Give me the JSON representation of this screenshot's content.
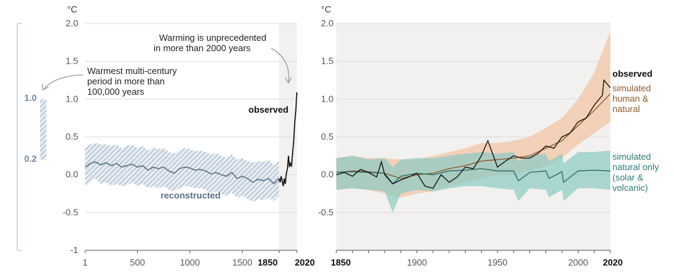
{
  "chart_data": [
    {
      "type": "line",
      "unit": "°C",
      "ylim": [
        -1,
        2
      ],
      "yticks": [
        "2.0",
        "1.5",
        "1.0",
        "0.5",
        "0.0",
        "-0.5",
        "-1"
      ],
      "xlim": [
        1,
        2020
      ],
      "xticks": [
        "1",
        "500",
        "1000",
        "1500",
        "1850",
        "2020"
      ],
      "shaded_period": [
        1850,
        2020
      ],
      "annotations": {
        "unprecedented": [
          "Warming is unprecedented",
          "in more than 2000 years"
        ],
        "warmest": [
          "Warmest multi-century",
          "period in more than",
          "100,000 years"
        ]
      },
      "side_range": {
        "labels": [
          "1.0",
          "0.2"
        ],
        "low": 0.2,
        "high": 1.0
      },
      "labels": {
        "observed": "observed",
        "reconstructed": "reconstructed"
      },
      "series": [
        {
          "name": "reconstructed",
          "x": [
            1,
            50,
            100,
            150,
            200,
            250,
            300,
            350,
            400,
            450,
            500,
            550,
            600,
            650,
            700,
            750,
            800,
            850,
            900,
            950,
            1000,
            1050,
            1100,
            1150,
            1200,
            1250,
            1300,
            1350,
            1400,
            1450,
            1500,
            1550,
            1600,
            1650,
            1700,
            1750,
            1800,
            1850
          ],
          "y": [
            0.1,
            0.15,
            0.17,
            0.13,
            0.16,
            0.12,
            0.15,
            0.1,
            0.12,
            0.14,
            0.1,
            0.12,
            0.06,
            0.1,
            0.08,
            0.1,
            0.05,
            0.02,
            0.08,
            0.1,
            0.09,
            0.06,
            0.07,
            0.05,
            0.01,
            0.03,
            0.0,
            -0.02,
            0.03,
            -0.05,
            -0.02,
            -0.05,
            -0.1,
            -0.06,
            -0.08,
            -0.05,
            -0.12,
            -0.05
          ],
          "lower": [
            -0.15,
            -0.1,
            -0.05,
            -0.12,
            -0.1,
            -0.15,
            -0.12,
            -0.15,
            -0.14,
            -0.1,
            -0.15,
            -0.12,
            -0.18,
            -0.15,
            -0.18,
            -0.15,
            -0.2,
            -0.22,
            -0.18,
            -0.15,
            -0.16,
            -0.18,
            -0.18,
            -0.2,
            -0.24,
            -0.22,
            -0.26,
            -0.28,
            -0.24,
            -0.3,
            -0.28,
            -0.32,
            -0.36,
            -0.32,
            -0.34,
            -0.3,
            -0.35,
            -0.28
          ],
          "upper": [
            0.35,
            0.4,
            0.42,
            0.4,
            0.4,
            0.38,
            0.4,
            0.35,
            0.38,
            0.4,
            0.35,
            0.38,
            0.32,
            0.36,
            0.34,
            0.35,
            0.3,
            0.28,
            0.32,
            0.35,
            0.34,
            0.31,
            0.32,
            0.3,
            0.27,
            0.28,
            0.25,
            0.22,
            0.27,
            0.2,
            0.22,
            0.18,
            0.16,
            0.18,
            0.17,
            0.2,
            0.12,
            0.18
          ]
        },
        {
          "name": "observed",
          "x": [
            1850,
            1860,
            1870,
            1880,
            1890,
            1900,
            1910,
            1920,
            1930,
            1940,
            1950,
            1960,
            1970,
            1980,
            1990,
            2000,
            2010,
            2020
          ],
          "y": [
            -0.05,
            -0.1,
            -0.02,
            -0.08,
            -0.15,
            -0.05,
            -0.12,
            0.02,
            0.08,
            0.25,
            0.1,
            0.15,
            0.12,
            0.3,
            0.45,
            0.7,
            0.85,
            1.09
          ]
        }
      ]
    },
    {
      "type": "line",
      "unit": "°C",
      "ylim": [
        -1,
        2
      ],
      "yticks": [
        "2.0",
        "1.5",
        "1.0",
        "0.5",
        "0.0",
        "-0.5"
      ],
      "xlim": [
        1850,
        2020
      ],
      "xticks": [
        "1850",
        "1900",
        "1950",
        "2000",
        "2020"
      ],
      "labels": {
        "observed": "observed",
        "human": [
          "simulated",
          "human &",
          "natural"
        ],
        "natural": [
          "simulated",
          "natural only",
          "(solar &",
          "volcanic)"
        ]
      },
      "colors": {
        "observed": "#111111",
        "human": "#8b5a2b",
        "human_band": "#f2c5a5",
        "natural": "#2d6b66",
        "natural_band": "#8ccbc3"
      },
      "series": [
        {
          "name": "observed",
          "x": [
            1850,
            1855,
            1860,
            1865,
            1870,
            1875,
            1878,
            1880,
            1885,
            1890,
            1895,
            1900,
            1905,
            1910,
            1915,
            1920,
            1925,
            1930,
            1935,
            1940,
            1944,
            1950,
            1955,
            1960,
            1965,
            1970,
            1975,
            1980,
            1985,
            1990,
            1995,
            2000,
            2005,
            2010,
            2015,
            2016,
            2020
          ],
          "y": [
            0.0,
            0.03,
            -0.02,
            0.07,
            0.03,
            -0.03,
            0.17,
            0.0,
            -0.12,
            -0.07,
            -0.03,
            0.02,
            -0.15,
            -0.18,
            0.0,
            -0.1,
            -0.03,
            0.1,
            0.08,
            0.25,
            0.45,
            0.1,
            0.18,
            0.25,
            0.22,
            0.22,
            0.28,
            0.38,
            0.35,
            0.5,
            0.55,
            0.7,
            0.75,
            0.92,
            1.05,
            1.25,
            1.15
          ]
        },
        {
          "name": "simulated human & natural",
          "x": [
            1850,
            1860,
            1870,
            1880,
            1890,
            1900,
            1910,
            1920,
            1930,
            1940,
            1950,
            1960,
            1970,
            1980,
            1990,
            2000,
            2010,
            2020
          ],
          "y": [
            0.03,
            0.05,
            0.04,
            0.02,
            -0.05,
            0.0,
            0.02,
            0.08,
            0.12,
            0.18,
            0.2,
            0.22,
            0.25,
            0.35,
            0.45,
            0.65,
            0.85,
            1.07
          ],
          "lower": [
            -0.2,
            -0.18,
            -0.2,
            -0.25,
            -0.3,
            -0.25,
            -0.22,
            -0.15,
            -0.1,
            -0.05,
            0.0,
            0.0,
            0.05,
            0.12,
            0.22,
            0.4,
            0.55,
            0.7
          ],
          "upper": [
            0.22,
            0.25,
            0.22,
            0.22,
            0.2,
            0.2,
            0.25,
            0.3,
            0.35,
            0.42,
            0.42,
            0.45,
            0.5,
            0.62,
            0.75,
            1.0,
            1.35,
            1.9
          ]
        },
        {
          "name": "simulated natural only",
          "x": [
            1850,
            1860,
            1870,
            1880,
            1885,
            1890,
            1900,
            1910,
            1920,
            1930,
            1940,
            1950,
            1960,
            1963,
            1970,
            1980,
            1982,
            1990,
            1991,
            2000,
            2010,
            2020
          ],
          "y": [
            0.03,
            0.04,
            0.03,
            0.02,
            -0.12,
            -0.02,
            0.02,
            0.0,
            0.05,
            0.06,
            0.08,
            0.05,
            0.05,
            -0.08,
            0.03,
            0.05,
            -0.05,
            0.04,
            -0.1,
            0.05,
            0.06,
            0.05
          ],
          "lower": [
            -0.2,
            -0.18,
            -0.2,
            -0.22,
            -0.5,
            -0.25,
            -0.2,
            -0.22,
            -0.18,
            -0.15,
            -0.15,
            -0.18,
            -0.2,
            -0.35,
            -0.18,
            -0.2,
            -0.3,
            -0.2,
            -0.35,
            -0.18,
            -0.18,
            -0.2
          ],
          "upper": [
            0.22,
            0.25,
            0.2,
            0.22,
            0.1,
            0.2,
            0.22,
            0.22,
            0.25,
            0.28,
            0.3,
            0.28,
            0.3,
            0.18,
            0.25,
            0.28,
            0.18,
            0.28,
            0.15,
            0.3,
            0.3,
            0.32
          ]
        }
      ]
    }
  ]
}
